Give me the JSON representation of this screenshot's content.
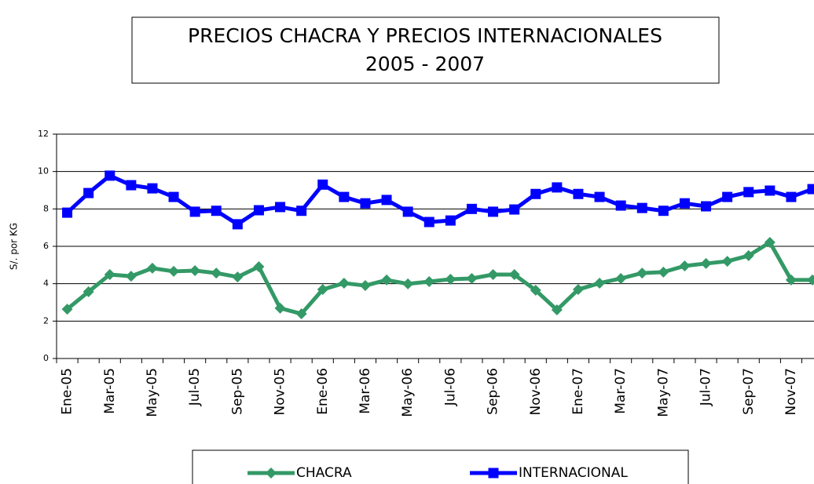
{
  "chart_data": {
    "type": "line",
    "title": "PRECIOS CHACRA Y PRECIOS INTERNACIONALES",
    "subtitle": "2005 - 2007",
    "y_label": "S/. por KG",
    "categories": [
      "Ene-05",
      null,
      "Mar-05",
      null,
      "May-05",
      null,
      "Jul-05",
      null,
      "Sep-05",
      null,
      "Nov-05",
      null,
      "Ene-06",
      null,
      "Mar-06",
      null,
      "May-06",
      null,
      "Jul-06",
      null,
      "Sep-06",
      null,
      "Nov-06",
      null,
      "Ene-07",
      null,
      "Mar-07",
      null,
      "May-07",
      null,
      "Jul-07",
      null,
      "Sep-07",
      null,
      "Nov-07",
      null
    ],
    "series": [
      {
        "name": "CHACRA",
        "color": "#339966",
        "marker": "diamond",
        "values": [
          2.64,
          3.57,
          4.49,
          4.4,
          4.83,
          4.66,
          4.7,
          4.57,
          4.36,
          4.91,
          2.69,
          2.39,
          3.69,
          4.03,
          3.9,
          4.2,
          3.99,
          4.11,
          4.24,
          4.28,
          4.49,
          4.49,
          3.65,
          2.6,
          3.69,
          4.03,
          4.28,
          4.57,
          4.62,
          4.95,
          5.08,
          5.2,
          5.5,
          6.21,
          4.2,
          4.2
        ]
      },
      {
        "name": "INTERNACIONAL",
        "color": "#0000ff",
        "marker": "square",
        "values": [
          7.8,
          8.85,
          9.78,
          9.27,
          9.1,
          8.64,
          7.85,
          7.9,
          7.18,
          7.93,
          8.1,
          7.9,
          9.3,
          8.64,
          8.3,
          8.48,
          7.85,
          7.3,
          7.38,
          8.0,
          7.85,
          7.97,
          8.8,
          9.15,
          8.8,
          8.64,
          8.18,
          8.05,
          7.9,
          8.3,
          8.14,
          8.64,
          8.9,
          8.98,
          8.64,
          9.06
        ]
      }
    ],
    "ylim": [
      0,
      12
    ],
    "yticks": [
      0,
      2,
      4,
      6,
      8,
      10,
      12
    ],
    "grid": true
  }
}
